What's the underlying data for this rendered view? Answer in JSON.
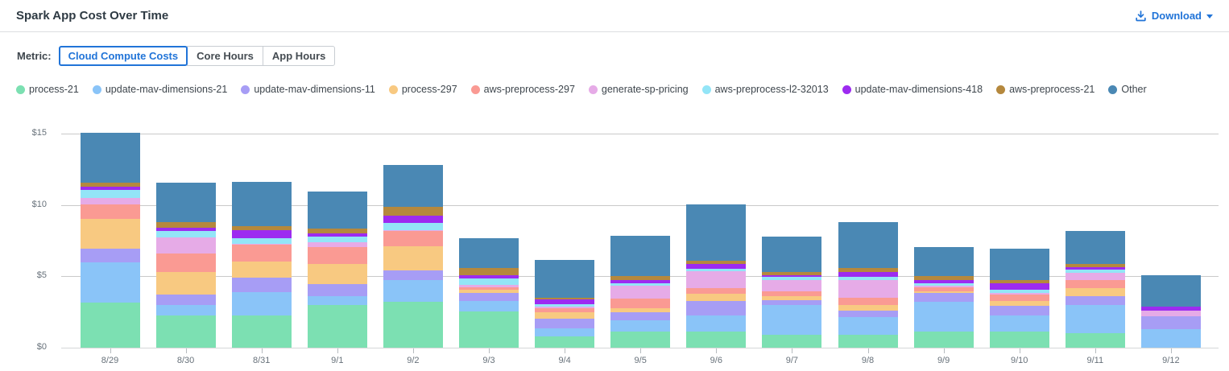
{
  "header": {
    "title": "Spark App Cost Over Time",
    "download": {
      "label": "Download"
    }
  },
  "icons": {
    "download_icon": "download-tray-arrow",
    "download_caret": "caret-down"
  },
  "metric": {
    "label": "Metric:",
    "options": [
      {
        "label": "Cloud Compute Costs",
        "selected": true
      },
      {
        "label": "Core Hours",
        "selected": false
      },
      {
        "label": "App Hours",
        "selected": false
      }
    ]
  },
  "colors": {
    "accent_blue": "#2174d8",
    "grid_line": "#cacaca",
    "axis_text": "#67717a",
    "title_text": "#2e3a43",
    "legend_text": "#3e464d"
  },
  "chart_data": {
    "type": "bar",
    "stacked": true,
    "title": "Spark App Cost Over Time",
    "xlabel": "",
    "ylabel": "",
    "ytick_prefix": "$",
    "yticks": [
      0,
      5,
      10,
      15
    ],
    "ylim": [
      0,
      15.05
    ],
    "grid": true,
    "legend_position": "top",
    "categories": [
      "8/29",
      "8/30",
      "8/31",
      "9/1",
      "9/2",
      "9/3",
      "9/4",
      "9/5",
      "9/6",
      "9/7",
      "9/8",
      "9/9",
      "9/10",
      "9/11",
      "9/12"
    ],
    "series": [
      {
        "name": "process-21",
        "color": "#7ce0b2",
        "values": [
          3.18,
          2.24,
          2.24,
          2.97,
          3.21,
          2.56,
          0.77,
          1.11,
          1.11,
          0.92,
          0.92,
          1.14,
          1.11,
          1.0,
          0
        ]
      },
      {
        "name": "update-mav-dimensions-21",
        "color": "#8ac4f8",
        "values": [
          2.82,
          0.73,
          1.63,
          0.66,
          1.54,
          0.69,
          0.57,
          0.79,
          1.13,
          2.05,
          1.21,
          2.07,
          1.16,
          1.99,
          1.3
        ]
      },
      {
        "name": "update-mav-dimensions-11",
        "color": "#a79df5",
        "values": [
          0.95,
          0.75,
          1.04,
          0.81,
          0.66,
          0.57,
          0.71,
          0.56,
          1.01,
          0.34,
          0.48,
          0.61,
          0.66,
          0.64,
          0.88
        ]
      },
      {
        "name": "process-297",
        "color": "#f8c981",
        "values": [
          2.05,
          1.56,
          1.11,
          1.44,
          1.71,
          0.24,
          0.41,
          0.29,
          0.53,
          0.28,
          0.38,
          0.11,
          0.32,
          0.53,
          0
        ]
      },
      {
        "name": "aws-preprocess-297",
        "color": "#fa9a93",
        "values": [
          1.05,
          1.32,
          1.2,
          1.19,
          1.08,
          0.19,
          0.29,
          0.69,
          0.41,
          0.38,
          0.51,
          0.32,
          0.47,
          0.56,
          0
        ]
      },
      {
        "name": "generate-sp-pricing",
        "color": "#e6abe7",
        "values": [
          0.45,
          1.13,
          0.05,
          0.32,
          0.05,
          0.13,
          0.14,
          0.9,
          1.19,
          0.79,
          1.26,
          0.09,
          0.1,
          0.53,
          0.4
        ]
      },
      {
        "name": "aws-preprocess-l2-32013",
        "color": "#93e5f7",
        "values": [
          0.53,
          0.47,
          0.41,
          0.38,
          0.5,
          0.49,
          0.14,
          0.19,
          0.15,
          0.2,
          0.19,
          0.19,
          0.24,
          0.22,
          0
        ]
      },
      {
        "name": "update-mav-dimensions-418",
        "color": "#9d2bf0",
        "values": [
          0.25,
          0.22,
          0.53,
          0.26,
          0.53,
          0.19,
          0.34,
          0.23,
          0.35,
          0.13,
          0.37,
          0.23,
          0.44,
          0.15,
          0.3
        ]
      },
      {
        "name": "aws-preprocess-21",
        "color": "#b5883d",
        "values": [
          0.28,
          0.38,
          0.32,
          0.3,
          0.57,
          0.54,
          0.14,
          0.24,
          0.19,
          0.23,
          0.25,
          0.24,
          0.26,
          0.23,
          0
        ]
      },
      {
        "name": "Other",
        "color": "#4a88b4",
        "values": [
          3.49,
          2.76,
          3.08,
          2.63,
          2.97,
          2.09,
          2.66,
          2.82,
          3.97,
          2.46,
          3.23,
          2.03,
          2.18,
          2.35,
          2.21
        ]
      }
    ]
  }
}
